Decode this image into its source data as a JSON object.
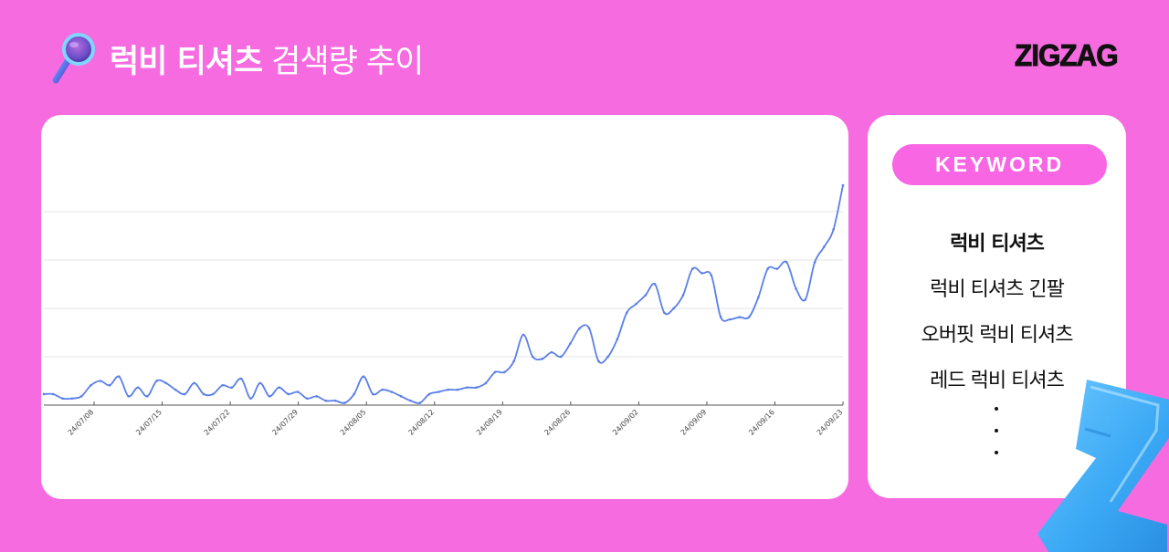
{
  "header": {
    "icon": "magnifier-icon",
    "title_bold": "럭비 티셔츠",
    "title_light": "검색량 추이"
  },
  "brand": {
    "logo_text": "ZIGZAG"
  },
  "keyword_panel": {
    "badge_label": "KEYWORD",
    "items": [
      {
        "label": "럭비 티셔츠",
        "active": true
      },
      {
        "label": "럭비 티셔츠 긴팔",
        "active": false
      },
      {
        "label": "오버핏 럭비 티셔츠",
        "active": false
      },
      {
        "label": "레드 럭비 티셔츠",
        "active": false
      }
    ],
    "more_indicator": "⋮"
  },
  "colors": {
    "background": "#f76be0",
    "card": "#ffffff",
    "badge": "#f966e4",
    "line": "#5b7fe8",
    "gridline": "#eeeeee",
    "axis": "#555555",
    "decoration_z": "#3fb3ff"
  },
  "chart_data": {
    "type": "line",
    "title": "럭비 티셔츠 검색량 추이",
    "xlabel": "",
    "ylabel": "",
    "y_axis_labels_visible": false,
    "grid": true,
    "legend": null,
    "ylim": [
      0,
      100
    ],
    "x_tick_labels": [
      "24/07/08",
      "24/07/15",
      "24/07/22",
      "24/07/29",
      "24/08/05",
      "24/08/12",
      "24/08/19",
      "24/08/26",
      "24/09/02",
      "24/09/09",
      "24/09/16",
      "24/09/23"
    ],
    "x_start": "24/07/03",
    "x_end": "24/09/23",
    "series": [
      {
        "name": "럭비 티셔츠",
        "values": [
          5,
          5,
          3,
          3,
          4,
          9,
          11,
          9,
          13,
          4,
          8,
          4,
          11,
          10,
          7,
          5,
          10,
          5,
          5,
          9,
          8,
          12,
          3,
          10,
          4,
          8,
          5,
          6,
          3,
          4,
          2,
          2,
          1,
          5,
          13,
          5,
          7,
          6,
          4,
          2,
          1,
          5,
          6,
          7,
          7,
          8,
          8,
          10,
          15,
          15,
          20,
          32,
          22,
          21,
          24,
          22,
          28,
          35,
          35,
          20,
          22,
          30,
          42,
          46,
          50,
          55,
          42,
          44,
          50,
          62,
          60,
          59,
          40,
          39,
          40,
          40,
          49,
          62,
          62,
          65,
          53,
          48,
          65,
          72,
          80,
          100
        ]
      }
    ],
    "gridlines_y": [
      0,
      22,
      44,
      66,
      88
    ]
  }
}
